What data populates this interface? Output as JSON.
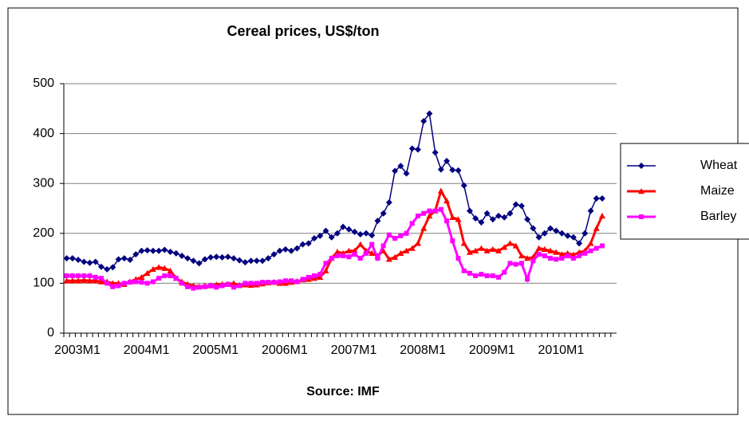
{
  "chart_data": {
    "type": "line",
    "title": "Cereal prices, US$/ton",
    "x_label": "Source: IMF",
    "categories": [
      "2003M1",
      null,
      null,
      null,
      null,
      null,
      null,
      null,
      null,
      null,
      null,
      null,
      "2004M1",
      null,
      null,
      null,
      null,
      null,
      null,
      null,
      null,
      null,
      null,
      null,
      "2005M1",
      null,
      null,
      null,
      null,
      null,
      null,
      null,
      null,
      null,
      null,
      null,
      "2006M1",
      null,
      null,
      null,
      null,
      null,
      null,
      null,
      null,
      null,
      null,
      null,
      "2007M1",
      null,
      null,
      null,
      null,
      null,
      null,
      null,
      null,
      null,
      null,
      null,
      "2008M1",
      null,
      null,
      null,
      null,
      null,
      null,
      null,
      null,
      null,
      null,
      null,
      "2009M1",
      null,
      null,
      null,
      null,
      null,
      null,
      null,
      null,
      null,
      null,
      null,
      "2010M1",
      null,
      null,
      null,
      null,
      null,
      null,
      null,
      null,
      null,
      null,
      null
    ],
    "series": [
      {
        "name": "Wheat",
        "color": "#000080",
        "marker": "diamond",
        "values": [
          150,
          150,
          147,
          143,
          141,
          143,
          133,
          128,
          132,
          148,
          150,
          147,
          158,
          165,
          166,
          165,
          165,
          167,
          163,
          160,
          155,
          150,
          145,
          140,
          148,
          152,
          153,
          152,
          153,
          150,
          146,
          142,
          145,
          145,
          145,
          150,
          158,
          165,
          168,
          165,
          170,
          178,
          180,
          190,
          195,
          205,
          192,
          200,
          213,
          208,
          203,
          198,
          200,
          196,
          225,
          240,
          262,
          325,
          335,
          320,
          370,
          368,
          425,
          440,
          362,
          328,
          345,
          327,
          326,
          296,
          245,
          230,
          222,
          240,
          228,
          235,
          232,
          240,
          258,
          255,
          228,
          210,
          192,
          200,
          210,
          205,
          200,
          195,
          192,
          180,
          200,
          245,
          270,
          270,
          null,
          null
        ]
      },
      {
        "name": "Maize",
        "color": "#ff0000",
        "marker": "triangle",
        "values": [
          105,
          105,
          105,
          106,
          105,
          105,
          103,
          103,
          100,
          100,
          98,
          103,
          108,
          112,
          120,
          128,
          132,
          130,
          125,
          110,
          103,
          98,
          95,
          93,
          95,
          95,
          97,
          98,
          98,
          100,
          96,
          97,
          96,
          97,
          99,
          101,
          102,
          100,
          100,
          102,
          104,
          107,
          108,
          110,
          112,
          125,
          150,
          163,
          160,
          165,
          165,
          178,
          165,
          160,
          155,
          165,
          148,
          152,
          160,
          165,
          170,
          180,
          210,
          235,
          245,
          285,
          265,
          232,
          228,
          180,
          162,
          165,
          170,
          165,
          168,
          165,
          172,
          180,
          175,
          155,
          150,
          152,
          170,
          168,
          165,
          162,
          158,
          160,
          157,
          162,
          165,
          180,
          210,
          235,
          null,
          null
        ]
      },
      {
        "name": "Barley",
        "color": "#ff00ff",
        "marker": "square",
        "values": [
          115,
          115,
          115,
          115,
          115,
          112,
          110,
          100,
          93,
          95,
          100,
          102,
          103,
          102,
          100,
          103,
          110,
          115,
          115,
          110,
          100,
          93,
          90,
          92,
          93,
          95,
          92,
          95,
          98,
          92,
          95,
          100,
          100,
          100,
          102,
          102,
          102,
          103,
          105,
          105,
          103,
          108,
          112,
          115,
          118,
          140,
          150,
          155,
          155,
          153,
          158,
          150,
          160,
          178,
          150,
          175,
          197,
          190,
          195,
          200,
          220,
          235,
          240,
          245,
          245,
          248,
          225,
          185,
          150,
          125,
          120,
          115,
          118,
          115,
          115,
          112,
          122,
          140,
          138,
          140,
          108,
          145,
          158,
          155,
          150,
          148,
          150,
          155,
          150,
          155,
          160,
          165,
          170,
          175,
          null,
          null
        ]
      }
    ],
    "ylim": [
      0,
      500
    ],
    "yticks": [
      0,
      100,
      200,
      300,
      400,
      500
    ],
    "grid": true,
    "legend": "right"
  }
}
